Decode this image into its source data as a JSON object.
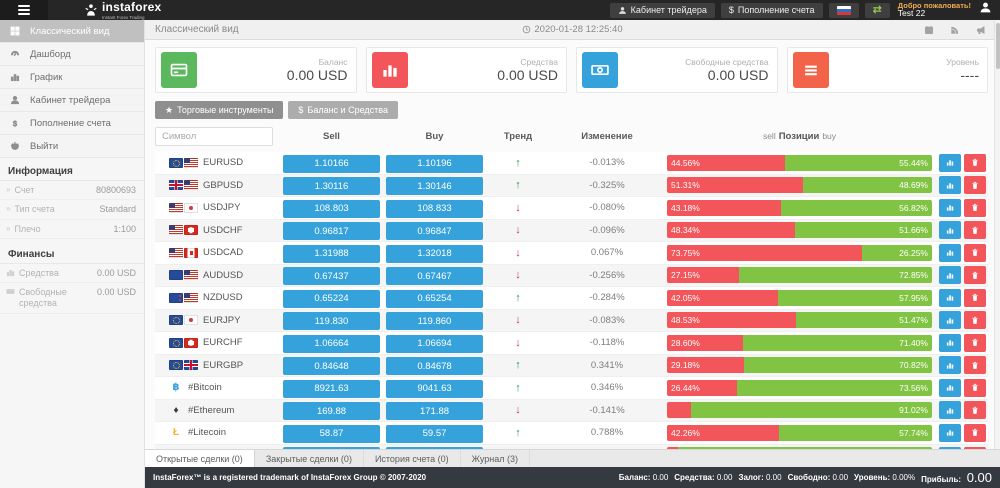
{
  "topbar": {
    "logo_text": "instaforex",
    "logo_sub": "Instant Forex Trading",
    "trader_cabinet": "Кабинет трейдера",
    "deposit": "Пополнение счета",
    "welcome": "Добро пожаловать!",
    "username": "Test 22"
  },
  "sidebar": {
    "items": [
      {
        "id": "classic-view",
        "label": "Классический вид",
        "icon": "grid",
        "active": true
      },
      {
        "id": "dashboard",
        "label": "Дашборд",
        "icon": "gauge",
        "active": false
      },
      {
        "id": "chart",
        "label": "График",
        "icon": "chart",
        "active": false
      },
      {
        "id": "trader-cabinet",
        "label": "Кабинет трейдера",
        "icon": "person",
        "active": false
      },
      {
        "id": "deposit",
        "label": "Пополнение счета",
        "icon": "dollar",
        "active": false
      },
      {
        "id": "logout",
        "label": "Выйти",
        "icon": "power",
        "active": false
      }
    ],
    "info_heading": "Информация",
    "info_rows": [
      {
        "label": "Счет",
        "value": "80800693"
      },
      {
        "label": "Тип счета",
        "value": "Standard"
      },
      {
        "label": "Плечо",
        "value": "1:100"
      }
    ],
    "finance_heading": "Финансы",
    "finance_rows": [
      {
        "icon": "chart",
        "label": "Средства",
        "value": "0.00 USD"
      },
      {
        "icon": "banknote",
        "label": "Свободные средства",
        "value": "0.00 USD"
      }
    ]
  },
  "content_header": {
    "title": "Классический вид",
    "datetime": "2020-01-28 12:25:40"
  },
  "cards": [
    {
      "label": "Баланс",
      "value": "0.00 USD",
      "color": "#5cb85c",
      "icon": "credit-card"
    },
    {
      "label": "Средства",
      "value": "0.00 USD",
      "color": "#f2555a",
      "icon": "bar-chart"
    },
    {
      "label": "Свободные средства",
      "value": "0.00 USD",
      "color": "#36a2db",
      "icon": "banknote"
    },
    {
      "label": "Уровень",
      "value": "----",
      "color": "#f36349",
      "icon": "list"
    }
  ],
  "toolbar": {
    "instruments": "Торговые инструменты",
    "balance": "Баланс и Средства"
  },
  "table": {
    "search_placeholder": "Символ",
    "headers": {
      "sell": "Sell",
      "buy": "Buy",
      "trend": "Тренд",
      "change": "Изменение",
      "positions_left": "sell",
      "positions_mid": "Позиции",
      "positions_right": "buy"
    },
    "rows": [
      {
        "symbol": "EURUSD",
        "flags": [
          "eu",
          "us"
        ],
        "sell": "1.10166",
        "buy": "1.10196",
        "trend": "up",
        "change": "-0.013%",
        "sell_pct": 44.56,
        "buy_pct": 55.44,
        "sell_label": "44.56%",
        "buy_label": "55.44%"
      },
      {
        "symbol": "GBPUSD",
        "flags": [
          "gb",
          "us"
        ],
        "sell": "1.30116",
        "buy": "1.30146",
        "trend": "up",
        "change": "-0.325%",
        "sell_pct": 51.31,
        "buy_pct": 48.69,
        "sell_label": "51.31%",
        "buy_label": "48.69%"
      },
      {
        "symbol": "USDJPY",
        "flags": [
          "us",
          "jp"
        ],
        "sell": "108.803",
        "buy": "108.833",
        "trend": "down",
        "change": "-0.080%",
        "sell_pct": 43.18,
        "buy_pct": 56.82,
        "sell_label": "43.18%",
        "buy_label": "56.82%"
      },
      {
        "symbol": "USDCHF",
        "flags": [
          "us",
          "ch"
        ],
        "sell": "0.96817",
        "buy": "0.96847",
        "trend": "down",
        "change": "-0.096%",
        "sell_pct": 48.34,
        "buy_pct": 51.66,
        "sell_label": "48.34%",
        "buy_label": "51.66%"
      },
      {
        "symbol": "USDCAD",
        "flags": [
          "us",
          "ca"
        ],
        "sell": "1.31988",
        "buy": "1.32018",
        "trend": "down",
        "change": "0.067%",
        "sell_pct": 73.75,
        "buy_pct": 26.25,
        "sell_label": "73.75%",
        "buy_label": "26.25%"
      },
      {
        "symbol": "AUDUSD",
        "flags": [
          "au",
          "us"
        ],
        "sell": "0.67437",
        "buy": "0.67467",
        "trend": "down",
        "change": "-0.256%",
        "sell_pct": 27.15,
        "buy_pct": 72.85,
        "sell_label": "27.15%",
        "buy_label": "72.85%"
      },
      {
        "symbol": "NZDUSD",
        "flags": [
          "nz",
          "us"
        ],
        "sell": "0.65224",
        "buy": "0.65254",
        "trend": "up",
        "change": "-0.284%",
        "sell_pct": 42.05,
        "buy_pct": 57.95,
        "sell_label": "42.05%",
        "buy_label": "57.95%"
      },
      {
        "symbol": "EURJPY",
        "flags": [
          "eu",
          "jp"
        ],
        "sell": "119.830",
        "buy": "119.860",
        "trend": "down",
        "change": "-0.083%",
        "sell_pct": 48.53,
        "buy_pct": 51.47,
        "sell_label": "48.53%",
        "buy_label": "51.47%"
      },
      {
        "symbol": "EURCHF",
        "flags": [
          "eu",
          "ch"
        ],
        "sell": "1.06664",
        "buy": "1.06694",
        "trend": "down",
        "change": "-0.118%",
        "sell_pct": 28.6,
        "buy_pct": 71.4,
        "sell_label": "28.60%",
        "buy_label": "71.40%"
      },
      {
        "symbol": "EURGBP",
        "flags": [
          "eu",
          "gb"
        ],
        "sell": "0.84648",
        "buy": "0.84678",
        "trend": "up",
        "change": "0.341%",
        "sell_pct": 29.18,
        "buy_pct": 70.82,
        "sell_label": "29.18%",
        "buy_label": "70.82%"
      },
      {
        "symbol": "#Bitcoin",
        "crypto": {
          "glyph": "฿",
          "color": "#36a2db"
        },
        "sell": "8921.63",
        "buy": "9041.63",
        "trend": "up",
        "change": "0.346%",
        "sell_pct": 26.44,
        "buy_pct": 73.56,
        "sell_label": "26.44%",
        "buy_label": "73.56%"
      },
      {
        "symbol": "#Ethereum",
        "crypto": {
          "glyph": "♦",
          "color": "#3b3b3b"
        },
        "sell": "169.88",
        "buy": "171.88",
        "trend": "down",
        "change": "-0.141%",
        "sell_pct": 8.98,
        "buy_pct": 91.02,
        "sell_label": "",
        "buy_label": "91.02%"
      },
      {
        "symbol": "#Litecoin",
        "crypto": {
          "glyph": "Ł",
          "color": "#f5b335"
        },
        "sell": "58.87",
        "buy": "59.57",
        "trend": "up",
        "change": "0.788%",
        "sell_pct": 42.26,
        "buy_pct": 57.74,
        "sell_label": "42.26%",
        "buy_label": "57.74%"
      },
      {
        "symbol": "",
        "partial": true,
        "sell": "",
        "buy": "",
        "trend": "",
        "change": "",
        "sell_pct": 4,
        "buy_pct": 96,
        "sell_label": "",
        "buy_label": ""
      }
    ]
  },
  "tabs": [
    {
      "id": "open-trades",
      "label": "Открытые сделки (0)",
      "active": true
    },
    {
      "id": "closed-trades",
      "label": "Закрытые сделки (0)",
      "active": false
    },
    {
      "id": "account-history",
      "label": "История счета (0)",
      "active": false
    },
    {
      "id": "journal",
      "label": "Журнал (3)",
      "active": false
    }
  ],
  "footer": {
    "copyright": "InstaForex™ is a registered trademark of InstaForex Group © 2007-2020",
    "stats": [
      {
        "label": "Баланс:",
        "value": "0.00",
        "big": false
      },
      {
        "label": "Средства:",
        "value": "0.00",
        "big": false
      },
      {
        "label": "Залог:",
        "value": "0.00",
        "big": false
      },
      {
        "label": "Свободно:",
        "value": "0.00",
        "big": false
      },
      {
        "label": "Уровень:",
        "value": "0.00%",
        "big": false
      },
      {
        "label": "Прибыль:",
        "value": "0.00",
        "big": true
      }
    ]
  }
}
